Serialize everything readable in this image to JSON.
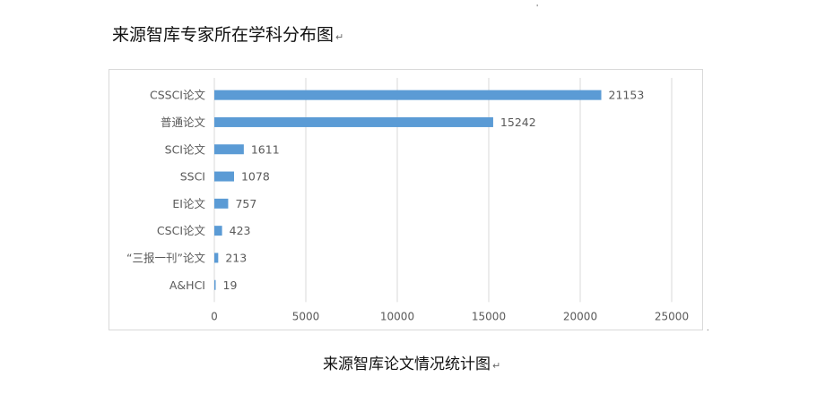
{
  "document": {
    "heading": "来源智库专家所在学科分布图",
    "caption": "来源智库论文情况统计图",
    "para_mark": "↵"
  },
  "chart_data": {
    "type": "bar",
    "orientation": "horizontal",
    "title": "",
    "xlabel": "",
    "ylabel": "",
    "categories": [
      "CSSCI论文",
      "普通论文",
      "SCI论文",
      "SSCI",
      "EI论文",
      "CSCI论文",
      "“三报一刊”论文",
      "A&HCI"
    ],
    "values": [
      21153,
      15242,
      1611,
      1078,
      757,
      423,
      213,
      19
    ],
    "xlim": [
      0,
      25000
    ],
    "xticks": [
      0,
      5000,
      10000,
      15000,
      20000,
      25000
    ],
    "grid": true,
    "legend": "none",
    "bar_color": "#5b9bd5",
    "grid_color": "#d9d9d9",
    "label_color": "#595959"
  }
}
